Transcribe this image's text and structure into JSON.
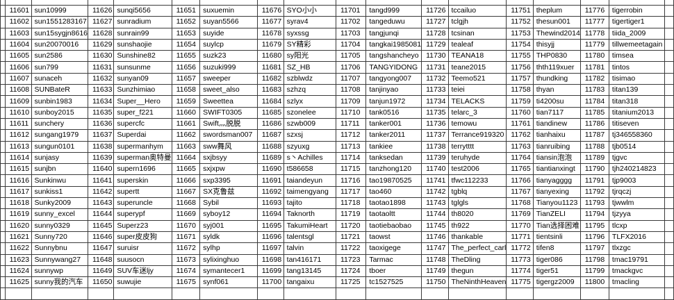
{
  "groups": [
    {
      "entries": [
        [
          "11601",
          "sun10999"
        ],
        [
          "11602",
          "sun1551283167"
        ],
        [
          "11603",
          "sun15sygjn8616"
        ],
        [
          "11604",
          "sun20070016"
        ],
        [
          "11605",
          "sun2586"
        ],
        [
          "11606",
          "sun799"
        ],
        [
          "11607",
          "sunaceh"
        ],
        [
          "11608",
          "SUNBateR"
        ],
        [
          "11609",
          "sunbin1983"
        ],
        [
          "11610",
          "sunboy2015"
        ],
        [
          "11611",
          "sunchery"
        ],
        [
          "11612",
          "sungang1979"
        ],
        [
          "11613",
          "sungun0101"
        ],
        [
          "11614",
          "sunjasy"
        ],
        [
          "11615",
          "sunjbn"
        ],
        [
          "11616",
          "Sunkinwu"
        ],
        [
          "11617",
          "sunkiss1"
        ],
        [
          "11618",
          "Sunky2009"
        ],
        [
          "11619",
          "sunny_excel"
        ],
        [
          "11620",
          "sunny0329"
        ],
        [
          "11621",
          "Sunny720"
        ],
        [
          "11622",
          "Sunnybnu"
        ],
        [
          "11623",
          "Sunnywang27"
        ],
        [
          "11624",
          "sunnywp"
        ],
        [
          "11625",
          "sunny我的汽车"
        ]
      ]
    },
    {
      "entries": [
        [
          "11626",
          "sunqi5656"
        ],
        [
          "11627",
          "sunradium"
        ],
        [
          "11628",
          "sunrain99"
        ],
        [
          "11629",
          "sunshaojie"
        ],
        [
          "11630",
          "Sunshine82"
        ],
        [
          "11631",
          "sunsunme"
        ],
        [
          "11632",
          "sunyan09"
        ],
        [
          "11633",
          "Sunzhimiao"
        ],
        [
          "11634",
          "Super__Hero"
        ],
        [
          "11635",
          "super_f221"
        ],
        [
          "11636",
          "supercfc"
        ],
        [
          "11637",
          "Superdai"
        ],
        [
          "11638",
          "supermanhym"
        ],
        [
          "11639",
          "superman奥特曼"
        ],
        [
          "11640",
          "supern1696"
        ],
        [
          "11641",
          "superskin"
        ],
        [
          "11642",
          "supertt"
        ],
        [
          "11643",
          "superuncle"
        ],
        [
          "11644",
          "superypf"
        ],
        [
          "11645",
          "Superz23"
        ],
        [
          "11646",
          "super皮皮狗"
        ],
        [
          "11647",
          "suruisr"
        ],
        [
          "11648",
          "suusocn"
        ],
        [
          "11649",
          "SUV车迷ljy"
        ],
        [
          "11650",
          "suwujie"
        ]
      ]
    },
    {
      "entries": [
        [
          "11651",
          "suxuemin"
        ],
        [
          "11652",
          "suyan5566"
        ],
        [
          "11653",
          "suyide"
        ],
        [
          "11654",
          "suylcp"
        ],
        [
          "11655",
          "suzk23"
        ],
        [
          "11656",
          "suzuki999"
        ],
        [
          "11657",
          "sweeper"
        ],
        [
          "11658",
          "sweet_also"
        ],
        [
          "11659",
          "Sweettea"
        ],
        [
          "11660",
          "SWIFT0305"
        ],
        [
          "11661",
          "Swift灬脱脱"
        ],
        [
          "11662",
          "swordsman007"
        ],
        [
          "11663",
          "sww舞风"
        ],
        [
          "11664",
          "sxjbsyy"
        ],
        [
          "11665",
          "sxjxpw"
        ],
        [
          "11666",
          "sxp3395"
        ],
        [
          "11667",
          "SX克鲁兹"
        ],
        [
          "11668",
          "Sybil"
        ],
        [
          "11669",
          "syboy12"
        ],
        [
          "11670",
          "syj001"
        ],
        [
          "11671",
          "syldk"
        ],
        [
          "11672",
          "sylhp"
        ],
        [
          "11673",
          "sylixinghuo"
        ],
        [
          "11674",
          "symantecer1"
        ],
        [
          "11675",
          "synf061"
        ]
      ]
    },
    {
      "entries": [
        [
          "11676",
          "SYO小小"
        ],
        [
          "11677",
          "syrav4"
        ],
        [
          "11678",
          "syxssg"
        ],
        [
          "11679",
          "SY精彩"
        ],
        [
          "11680",
          "sy阳光"
        ],
        [
          "11681",
          "SZ_HB"
        ],
        [
          "11682",
          "szblwdz"
        ],
        [
          "11683",
          "szhzq"
        ],
        [
          "11684",
          "szlyx"
        ],
        [
          "11685",
          "szonelee"
        ],
        [
          "11686",
          "szwb009"
        ],
        [
          "11687",
          "szxsj"
        ],
        [
          "11688",
          "szyuxg"
        ],
        [
          "11689",
          "s丶Achilles"
        ],
        [
          "11690",
          "t586658"
        ],
        [
          "11691",
          "taiandeyun"
        ],
        [
          "11692",
          "taimengyang"
        ],
        [
          "11693",
          "tajito"
        ],
        [
          "11694",
          "Taknorth"
        ],
        [
          "11695",
          "TakumiHeart"
        ],
        [
          "11696",
          "talentsgl"
        ],
        [
          "11697",
          "talvin"
        ],
        [
          "11698",
          "tan416171"
        ],
        [
          "11699",
          "tang13145"
        ],
        [
          "11700",
          "tangaixu"
        ]
      ]
    },
    {
      "entries": [
        [
          "11701",
          "tangd999"
        ],
        [
          "11702",
          "tangeduwu"
        ],
        [
          "11703",
          "tangjunqi"
        ],
        [
          "11704",
          "tangkai1985081"
        ],
        [
          "11705",
          "tangshancheyo"
        ],
        [
          "11706",
          "TANGYIDONG"
        ],
        [
          "11707",
          "tangyong007"
        ],
        [
          "11708",
          "tanjinyao"
        ],
        [
          "11709",
          "tanjun1972"
        ],
        [
          "11710",
          "tank0516"
        ],
        [
          "11711",
          "tanker001"
        ],
        [
          "11712",
          "tanker2011"
        ],
        [
          "11713",
          "tankiee"
        ],
        [
          "11714",
          "tanksedan"
        ],
        [
          "11715",
          "tanzhong120"
        ],
        [
          "11716",
          "tao19870525"
        ],
        [
          "11717",
          "tao460"
        ],
        [
          "11718",
          "taotao1898"
        ],
        [
          "11719",
          "taotaoltt"
        ],
        [
          "11720",
          "taotiebaobao"
        ],
        [
          "11721",
          "taowst"
        ],
        [
          "11722",
          "taoxigege"
        ],
        [
          "11723",
          "Tarmac"
        ],
        [
          "11724",
          "tboer"
        ],
        [
          "11725",
          "tc1527525"
        ]
      ]
    },
    {
      "entries": [
        [
          "11726",
          "tccailuo"
        ],
        [
          "11727",
          "tclgjh"
        ],
        [
          "11728",
          "tcsinan"
        ],
        [
          "11729",
          "tealeaf"
        ],
        [
          "11730",
          "TEANA18"
        ],
        [
          "11731",
          "teane2015"
        ],
        [
          "11732",
          "Teemo521"
        ],
        [
          "11733",
          "teiei"
        ],
        [
          "11734",
          "TELACKS"
        ],
        [
          "11735",
          "telarc_3"
        ],
        [
          "11736",
          "temowu"
        ],
        [
          "11737",
          "Terrance919320"
        ],
        [
          "11738",
          "terrytttt"
        ],
        [
          "11739",
          "teruhyde"
        ],
        [
          "11740",
          "test2006"
        ],
        [
          "11741",
          "tfwc112233"
        ],
        [
          "11742",
          "tgblq"
        ],
        [
          "11743",
          "tglgls"
        ],
        [
          "11744",
          "th8020"
        ],
        [
          "11745",
          "th922"
        ],
        [
          "11746",
          "thankable"
        ],
        [
          "11747",
          "The_perfect_carl"
        ],
        [
          "11748",
          "TheDling"
        ],
        [
          "11749",
          "thegun"
        ],
        [
          "11750",
          "TheNinthHeaven"
        ]
      ]
    },
    {
      "entries": [
        [
          "11751",
          "theplum"
        ],
        [
          "11752",
          "thesun001"
        ],
        [
          "11753",
          "Thewind2014"
        ],
        [
          "11754",
          "thisyjj"
        ],
        [
          "11755",
          "THP0830"
        ],
        [
          "11756",
          "thth119xuer"
        ],
        [
          "11757",
          "thundking"
        ],
        [
          "11758",
          "thyan"
        ],
        [
          "11759",
          "ti4200su"
        ],
        [
          "11760",
          "tian7117"
        ],
        [
          "11761",
          "tiandinew"
        ],
        [
          "11762",
          "tianhaixu"
        ],
        [
          "11763",
          "tianruibing"
        ],
        [
          "11764",
          "tiansin泡泡"
        ],
        [
          "11765",
          "tiantianxingt"
        ],
        [
          "11766",
          "tianyagggg"
        ],
        [
          "11767",
          "tianyexing"
        ],
        [
          "11768",
          "Tianyou1123"
        ],
        [
          "11769",
          "TianZELI"
        ],
        [
          "11770",
          "Tian选择困难"
        ],
        [
          "11771",
          "tientsinli"
        ],
        [
          "11772",
          "tifen8"
        ],
        [
          "11773",
          "tiger086"
        ],
        [
          "11774",
          "tiger51"
        ],
        [
          "11775",
          "tigergz2009"
        ]
      ]
    },
    {
      "entries": [
        [
          "11776",
          "tigerrobin"
        ],
        [
          "11777",
          "tigertiger1"
        ],
        [
          "11778",
          "tiida_2009"
        ],
        [
          "11779",
          "tillwemeetagain"
        ],
        [
          "11780",
          "timsea"
        ],
        [
          "11781",
          "tintos"
        ],
        [
          "11782",
          "tisimao"
        ],
        [
          "11783",
          "titan139"
        ],
        [
          "11784",
          "titan318"
        ],
        [
          "11785",
          "titanium2013"
        ],
        [
          "11786",
          "titiseven"
        ],
        [
          "11787",
          "tj346558360"
        ],
        [
          "11788",
          "tjb0514"
        ],
        [
          "11789",
          "tjgvc"
        ],
        [
          "11790",
          "tjh240214823"
        ],
        [
          "11791",
          "tjp9003"
        ],
        [
          "11792",
          "tjrqczj"
        ],
        [
          "11793",
          "tjwwlm"
        ],
        [
          "11794",
          "tjzyya"
        ],
        [
          "11795",
          "tlcxp"
        ],
        [
          "11796",
          "TLFX2016"
        ],
        [
          "11797",
          "tlxzgc"
        ],
        [
          "11798",
          "tmac19791"
        ],
        [
          "11799",
          "tmackgvc"
        ],
        [
          "11800",
          "tmacling"
        ]
      ]
    }
  ]
}
